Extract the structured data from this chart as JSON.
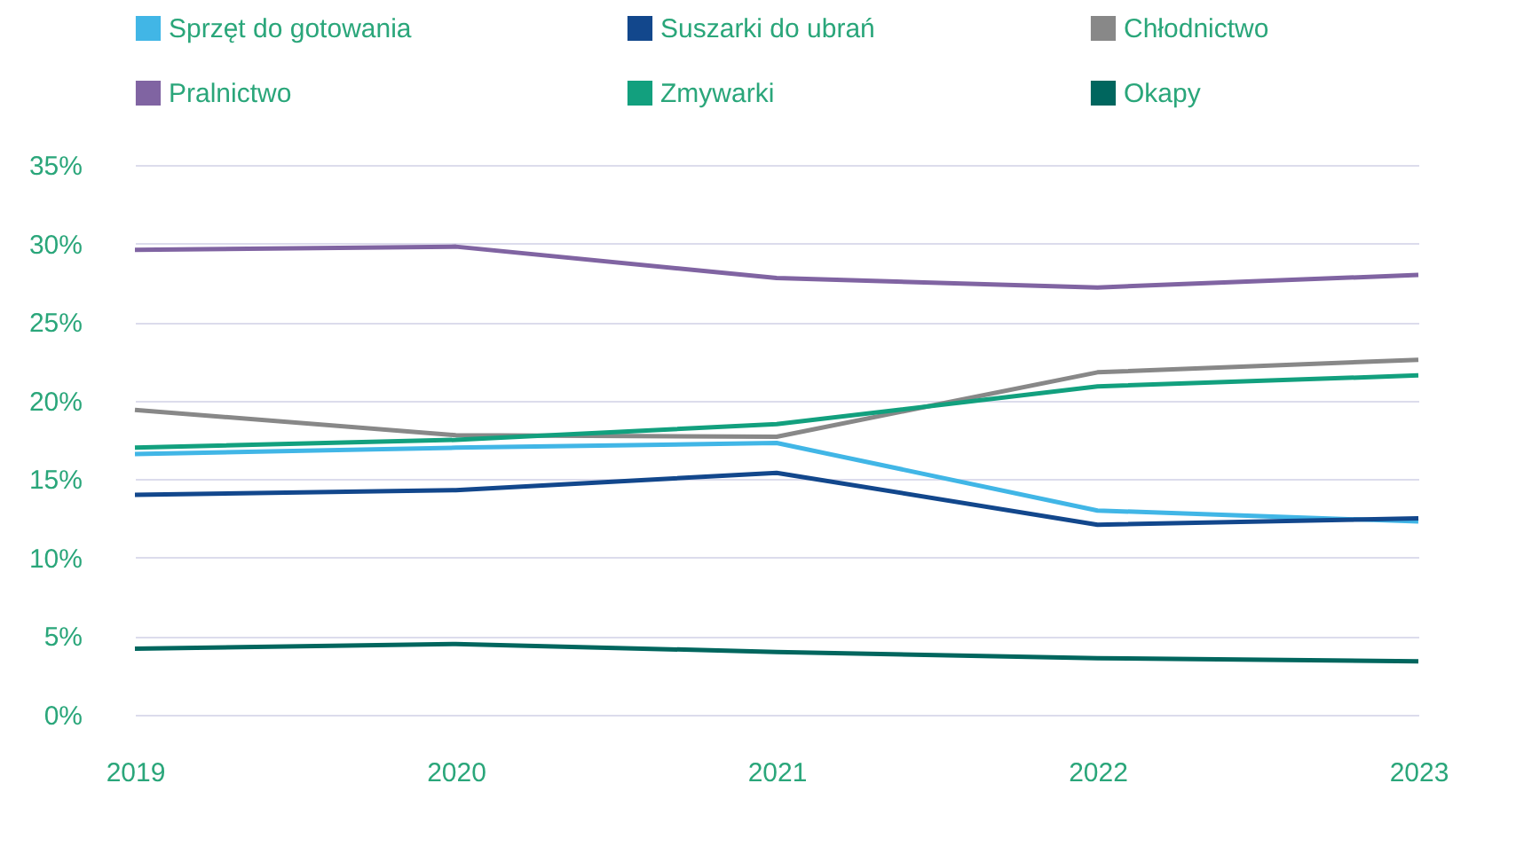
{
  "chart_data": {
    "type": "line",
    "categories": [
      "2019",
      "2020",
      "2021",
      "2022",
      "2023"
    ],
    "series": [
      {
        "name": "Sprzęt do gotowania",
        "color": "#41b6e6",
        "values": [
          16.6,
          17.0,
          17.3,
          13.0,
          12.3
        ]
      },
      {
        "name": "Suszarki do ubrań",
        "color": "#12478c",
        "values": [
          14.0,
          14.3,
          15.4,
          12.1,
          12.5
        ]
      },
      {
        "name": "Chłodnictwo",
        "color": "#888888",
        "values": [
          19.4,
          17.8,
          17.7,
          21.8,
          22.6
        ]
      },
      {
        "name": "Pralnictwo",
        "color": "#8064a2",
        "values": [
          29.6,
          29.8,
          27.8,
          27.2,
          28.0
        ]
      },
      {
        "name": "Zmywarki",
        "color": "#12a07e",
        "values": [
          17.0,
          17.5,
          18.5,
          20.9,
          21.6
        ]
      },
      {
        "name": "Okapy",
        "color": "#00665e",
        "values": [
          4.2,
          4.5,
          4.0,
          3.6,
          3.4
        ]
      }
    ],
    "ylim": [
      0,
      35
    ],
    "yticks": [
      {
        "value": 0,
        "label": "0%"
      },
      {
        "value": 5,
        "label": "5%"
      },
      {
        "value": 10,
        "label": "10%"
      },
      {
        "value": 15,
        "label": "15%"
      },
      {
        "value": 20,
        "label": "20%"
      },
      {
        "value": 25,
        "label": "25%"
      },
      {
        "value": 30,
        "label": "30%"
      },
      {
        "value": 35,
        "label": "35%"
      }
    ],
    "grid": "y",
    "legend": "top left",
    "marker": "none",
    "line_style": "solid"
  }
}
